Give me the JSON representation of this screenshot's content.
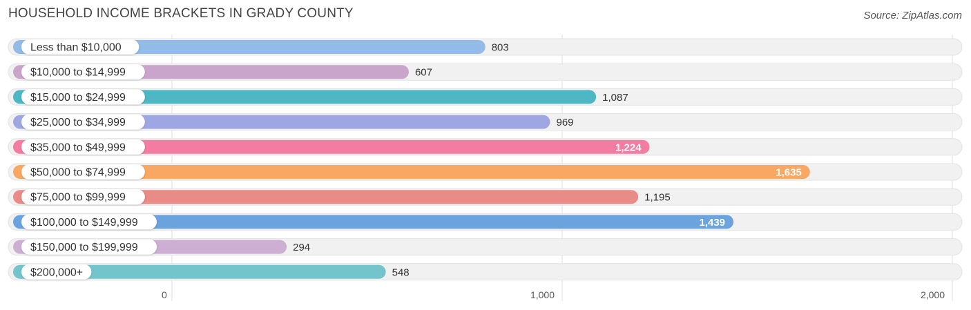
{
  "header": {
    "title": "HOUSEHOLD INCOME BRACKETS IN GRADY COUNTY",
    "source": "Source: ZipAtlas.com"
  },
  "chart_data": {
    "type": "bar",
    "orientation": "horizontal",
    "title": "HOUSEHOLD INCOME BRACKETS IN GRADY COUNTY",
    "categories": [
      "Less than $10,000",
      "$10,000 to $14,999",
      "$15,000 to $24,999",
      "$25,000 to $34,999",
      "$35,000 to $49,999",
      "$50,000 to $74,999",
      "$75,000 to $99,999",
      "$100,000 to $149,999",
      "$150,000 to $199,999",
      "$200,000+"
    ],
    "values": [
      803,
      607,
      1087,
      969,
      1224,
      1635,
      1195,
      1439,
      294,
      548
    ],
    "value_labels": [
      "803",
      "607",
      "1,087",
      "969",
      "1,224",
      "1,635",
      "1,195",
      "1,439",
      "294",
      "548"
    ],
    "colors": [
      "#92bbe8",
      "#c9a5cb",
      "#4db8c4",
      "#9fa7e3",
      "#f27ca2",
      "#f8a862",
      "#e98b86",
      "#6aa3de",
      "#cdafd4",
      "#73c4cb"
    ],
    "xlim": [
      0,
      2000
    ],
    "xticks": [
      0,
      1000,
      2000
    ],
    "xtick_labels": [
      "0",
      "1,000",
      "2,000"
    ],
    "grid": true,
    "legend": "none"
  }
}
